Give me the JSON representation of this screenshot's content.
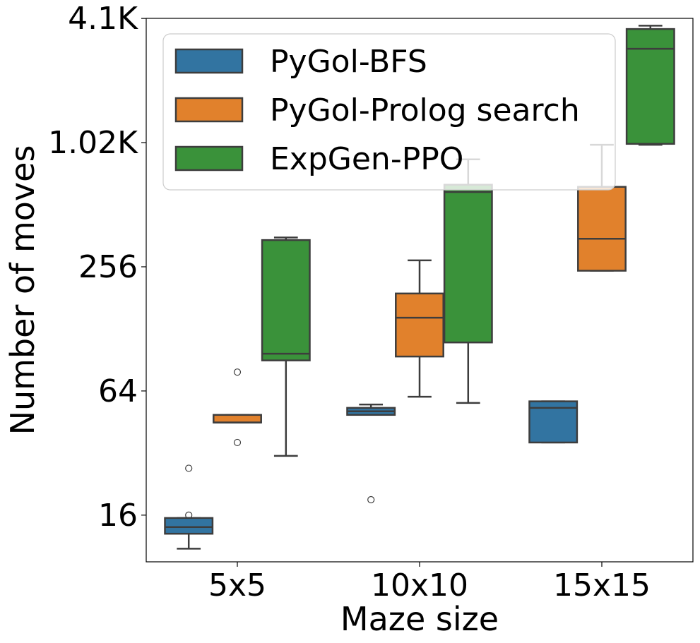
{
  "chart_data": {
    "type": "box",
    "xlabel": "Maze size",
    "ylabel": "Number of moves",
    "y_scale": "log2",
    "ylim": [
      9.5,
      4100
    ],
    "y_ticks": [
      {
        "value": 16,
        "label": "16"
      },
      {
        "value": 64,
        "label": "64"
      },
      {
        "value": 256,
        "label": "256"
      },
      {
        "value": 1024,
        "label": "1.02K"
      },
      {
        "value": 4096,
        "label": "4.1K"
      }
    ],
    "categories": [
      "5x5",
      "10x10",
      "15x15"
    ],
    "legend_position": "top-left",
    "series": [
      {
        "name": "PyGol-BFS",
        "color": "#3274a1",
        "boxes": [
          {
            "category": "5x5",
            "whisker_low": 11,
            "q1": 13,
            "median": 14,
            "q3": 15.5,
            "whisker_high": 15.5,
            "outliers": [
              27,
              16
            ]
          },
          {
            "category": "10x10",
            "whisker_low": 49,
            "q1": 49,
            "median": 51,
            "q3": 53,
            "whisker_high": 55,
            "outliers": [
              19
            ]
          },
          {
            "category": "15x15",
            "whisker_low": 36,
            "q1": 36,
            "median": 53,
            "q3": 57,
            "whisker_high": 57,
            "outliers": []
          }
        ]
      },
      {
        "name": "PyGol-Prolog search",
        "color": "#e1812c",
        "boxes": [
          {
            "category": "5x5",
            "whisker_low": 45,
            "q1": 45,
            "median": 45,
            "q3": 49,
            "whisker_high": 49,
            "outliers": [
              79,
              36
            ]
          },
          {
            "category": "10x10",
            "whisker_low": 60,
            "q1": 94,
            "median": 145,
            "q3": 190,
            "whisker_high": 275,
            "outliers": []
          },
          {
            "category": "15x15",
            "whisker_low": 245,
            "q1": 245,
            "median": 350,
            "q3": 625,
            "whisker_high": 1000,
            "outliers": []
          }
        ]
      },
      {
        "name": "ExpGen-PPO",
        "color": "#3a923a",
        "boxes": [
          {
            "category": "5x5",
            "whisker_low": 31,
            "q1": 90,
            "median": 97,
            "q3": 345,
            "whisker_high": 355,
            "outliers": []
          },
          {
            "category": "10x10",
            "whisker_low": 56,
            "q1": 110,
            "median": 590,
            "q3": 640,
            "whisker_high": 850,
            "outliers": []
          },
          {
            "category": "15x15",
            "whisker_low": 1000,
            "q1": 1010,
            "median": 2920,
            "q3": 3640,
            "whisker_high": 3780,
            "outliers": []
          }
        ]
      }
    ]
  }
}
